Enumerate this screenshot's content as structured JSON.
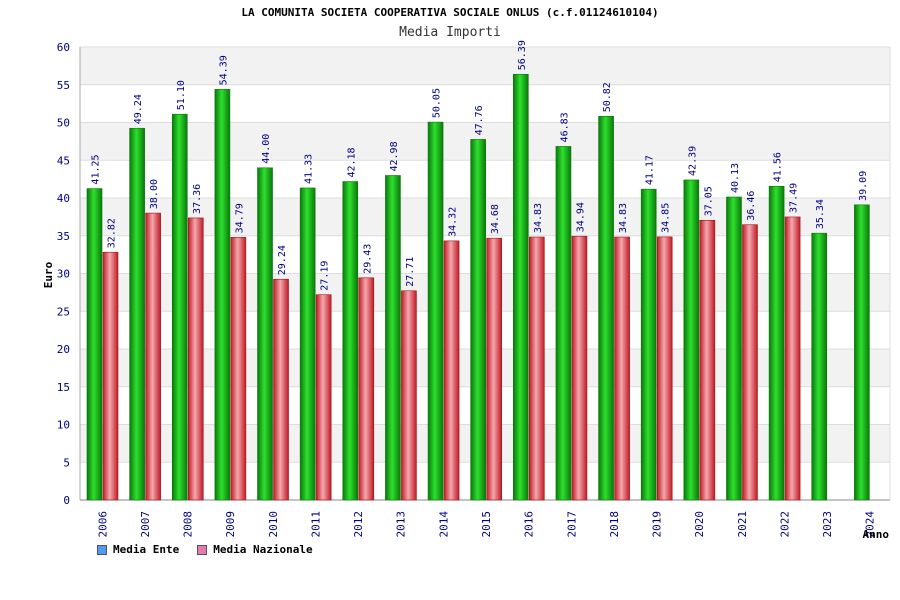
{
  "header": {
    "title": "LA COMUNITA SOCIETA COOPERATIVA SOCIALE ONLUS (c.f.01124610104)",
    "subtitle": "Media Importi"
  },
  "legend": {
    "ente_label": "Media Ente",
    "nazionale_label": "Media Nazionale"
  },
  "colors": {
    "ente": "#1ec81e",
    "ente_dark": "#0a780a",
    "nazionale": "#e8343f",
    "nazionale_light": "#f0a0a6",
    "ente_swatch": "#5599ee",
    "nazionale_swatch": "#e47ab0",
    "band": "#f2f2f2",
    "axis_text": "#000080"
  },
  "chart_data": {
    "type": "bar",
    "title": "LA COMUNITA SOCIETA COOPERATIVA SOCIALE ONLUS (c.f.01124610104)",
    "subtitle": "Media Importi",
    "xlabel": "Anno",
    "ylabel": "Euro",
    "ylim": [
      0,
      60
    ],
    "yticks": [
      0,
      5,
      10,
      15,
      20,
      25,
      30,
      35,
      40,
      45,
      50,
      55,
      60
    ],
    "grid": true,
    "legend_position": "bottom-left",
    "categories": [
      "2006",
      "2007",
      "2008",
      "2009",
      "2010",
      "2011",
      "2012",
      "2013",
      "2014",
      "2015",
      "2016",
      "2017",
      "2018",
      "2019",
      "2020",
      "2021",
      "2022",
      "2023",
      "2024"
    ],
    "series": [
      {
        "name": "Media Ente",
        "values": [
          41.25,
          49.24,
          51.1,
          54.39,
          44.0,
          41.33,
          42.18,
          42.98,
          50.05,
          47.76,
          56.39,
          46.83,
          50.82,
          41.17,
          42.39,
          40.13,
          41.56,
          35.34,
          39.09
        ],
        "labels": [
          "41.25",
          "49.24",
          "51.10",
          "54.39",
          "44.00",
          "41.33",
          "42.18",
          "42.98",
          "50.05",
          "47.76",
          "56.39",
          "46.83",
          "50.82",
          "41.17",
          "42.39",
          "40.13",
          "41.56",
          "35.34",
          "39.09"
        ]
      },
      {
        "name": "Media Nazionale",
        "values": [
          32.82,
          38.0,
          37.36,
          34.79,
          29.24,
          27.19,
          29.43,
          27.71,
          34.32,
          34.68,
          34.83,
          34.94,
          34.83,
          34.85,
          37.05,
          36.46,
          37.49,
          null,
          null
        ],
        "labels": [
          "32.82",
          "38.00",
          "37.36",
          "34.79",
          "29.24",
          "27.19",
          "29.43",
          "27.71",
          "34.32",
          "34.68",
          "34.83",
          "34.94",
          "34.83",
          "34.85",
          "37.05",
          "36.46",
          "37.49",
          null,
          null
        ]
      }
    ]
  }
}
